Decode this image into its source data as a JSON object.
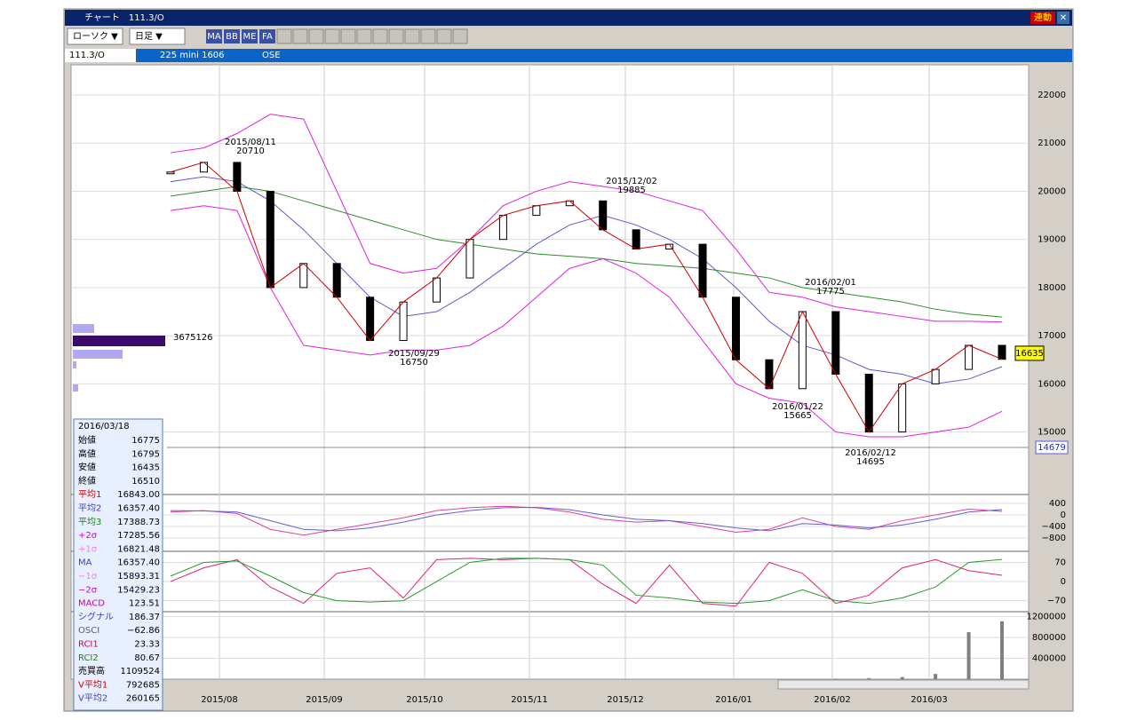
{
  "window": {
    "title": "チャート　111.3/O",
    "link_button": "連動"
  },
  "toolbar": {
    "chart_style": "ローソク ▼",
    "period": "日足 ▼",
    "icons": [
      "MA",
      "BB",
      "ME",
      "FA"
    ]
  },
  "infobar": {
    "symbol": "111.3/O",
    "name": "225 mini 1606",
    "market": "OSE"
  },
  "chart_data": {
    "type": "candlestick",
    "x_labels": [
      "2015/08",
      "2015/09",
      "2015/10",
      "2015/11",
      "2015/12",
      "2016/01",
      "2016/02",
      "2016/03"
    ],
    "series": [
      {
        "name": "終値",
        "color": "#000000",
        "values": [
          20400,
          20600,
          20000,
          18000,
          18500,
          17800,
          16900,
          17700,
          18200,
          19000,
          19500,
          19700,
          19800,
          19200,
          18800,
          18900,
          17800,
          16500,
          15900,
          17500,
          16200,
          15000,
          16000,
          16300,
          16800,
          16510
        ]
      },
      {
        "name": "平均2",
        "color": "#5a5ad0",
        "values": [
          20200,
          20300,
          20200,
          19800,
          19200,
          18500,
          17800,
          17400,
          17500,
          17900,
          18400,
          18900,
          19300,
          19500,
          19300,
          19000,
          18600,
          18000,
          17300,
          16800,
          16600,
          16300,
          16200,
          16000,
          16100,
          16357
        ]
      },
      {
        "name": "平均3",
        "color": "#2e8b2e",
        "values": [
          19900,
          20000,
          20100,
          20000,
          19800,
          19600,
          19400,
          19200,
          19000,
          18900,
          18800,
          18700,
          18650,
          18600,
          18500,
          18450,
          18400,
          18300,
          18200,
          18000,
          17900,
          17800,
          17700,
          17550,
          17450,
          17388
        ]
      },
      {
        "name": "+2σ",
        "color": "#e020e0",
        "values": [
          20800,
          20900,
          21200,
          21600,
          21500,
          20000,
          18500,
          18300,
          18400,
          19000,
          19700,
          20000,
          20200,
          20100,
          20000,
          19800,
          19600,
          18800,
          17900,
          17800,
          17600,
          17500,
          17400,
          17300,
          17300,
          17285
        ]
      },
      {
        "name": "-2σ",
        "color": "#e020e0",
        "values": [
          19600,
          19700,
          19600,
          18000,
          16800,
          16700,
          16600,
          16700,
          16700,
          16800,
          17200,
          17800,
          18400,
          18600,
          18300,
          17800,
          16900,
          16000,
          15700,
          15600,
          15000,
          14900,
          14900,
          15000,
          15100,
          15429
        ]
      }
    ],
    "ylim": [
      13720,
      22590
    ],
    "yticks": [
      15000,
      16000,
      17000,
      18000,
      19000,
      20000,
      21000,
      22000
    ],
    "annotations": [
      {
        "date": "2015/08/11",
        "value": 20710
      },
      {
        "date": "2015/09/29",
        "value": 16750
      },
      {
        "date": "2015/12/02",
        "value": 19885
      },
      {
        "date": "2016/01/22",
        "value": 15665
      },
      {
        "date": "2016/02/01",
        "value": 17775
      },
      {
        "date": "2016/02/12",
        "value": 14695
      }
    ],
    "last_price": 16635,
    "reference_price": 14679,
    "profile_label": "3675126",
    "macd": {
      "title": "MACD",
      "ylim": [
        -1230,
        615
      ],
      "yticks": [
        400,
        0,
        {
          "value": -400,
          "label": "−400"
        },
        {
          "value": -800,
          "label": "−800"
        }
      ],
      "series": [
        {
          "name": "MACD",
          "color": "#e040a0",
          "values": [
            100,
            150,
            50,
            -500,
            -700,
            -500,
            -300,
            -100,
            150,
            250,
            300,
            250,
            100,
            -150,
            -250,
            -200,
            -400,
            -600,
            -500,
            -100,
            -400,
            -500,
            -200,
            0,
            200,
            124
          ]
        },
        {
          "name": "シグナル",
          "color": "#6060d0",
          "values": [
            150,
            140,
            100,
            -200,
            -500,
            -550,
            -450,
            -250,
            0,
            150,
            250,
            260,
            180,
            0,
            -150,
            -200,
            -300,
            -450,
            -550,
            -300,
            -350,
            -450,
            -350,
            -150,
            100,
            186
          ]
        }
      ]
    },
    "rci": {
      "title": "RCI",
      "ylim": [
        -107,
        104
      ],
      "yticks": [
        70,
        0,
        {
          "value": -70,
          "label": "−70"
        }
      ],
      "series": [
        {
          "name": "RCI1",
          "color": "#e0207a",
          "values": [
            0,
            50,
            80,
            -20,
            -80,
            30,
            50,
            -60,
            80,
            85,
            80,
            85,
            80,
            -10,
            -80,
            60,
            -80,
            -90,
            70,
            30,
            -80,
            -50,
            50,
            80,
            40,
            23
          ]
        },
        {
          "name": "RCI2",
          "color": "#2a9a2a",
          "values": [
            20,
            70,
            75,
            20,
            -40,
            -70,
            -75,
            -70,
            0,
            70,
            85,
            85,
            80,
            60,
            -50,
            -60,
            -75,
            -80,
            -70,
            -30,
            -70,
            -80,
            -60,
            -20,
            70,
            81
          ]
        }
      ]
    },
    "volume": {
      "title": "売買高",
      "ylim": [
        0,
        1276000
      ],
      "yticks": [
        400000,
        800000,
        1200000
      ],
      "series": [
        {
          "name": "売買高",
          "color": "#808080",
          "values": [
            0,
            0,
            0,
            0,
            0,
            0,
            0,
            0,
            0,
            0,
            0,
            0,
            0,
            0,
            0,
            0,
            0,
            0,
            0,
            0,
            10000,
            20000,
            40000,
            100000,
            900000,
            1109524
          ]
        }
      ]
    }
  },
  "info_panel": {
    "date": "2016/03/18",
    "rows": [
      {
        "label": "始値",
        "value": "16775",
        "color": "#000000"
      },
      {
        "label": "高値",
        "value": "16795",
        "color": "#000000"
      },
      {
        "label": "安値",
        "value": "16435",
        "color": "#000000"
      },
      {
        "label": "終値",
        "value": "16510",
        "color": "#000000"
      },
      {
        "label": "平均1",
        "value": "16843.00",
        "color": "#d00000"
      },
      {
        "label": "平均2",
        "value": "16357.40",
        "color": "#4040c0"
      },
      {
        "label": "平均3",
        "value": "17388.73",
        "color": "#208020"
      },
      {
        "label": "+2σ",
        "value": "17285.56",
        "color": "#d000d0"
      },
      {
        "label": "+1σ",
        "value": "16821.48",
        "color": "#f080f0"
      },
      {
        "label": "MA",
        "value": "16357.40",
        "color": "#4040c0"
      },
      {
        "label": "−1σ",
        "value": "15893.31",
        "color": "#f080f0"
      },
      {
        "label": "−2σ",
        "value": "15429.23",
        "color": "#d000d0"
      },
      {
        "label": "MACD",
        "value": "123.51",
        "color": "#d000a0"
      },
      {
        "label": "シグナル",
        "value": "186.37",
        "color": "#4040c0"
      },
      {
        "label": "OSCI",
        "value": "−62.86",
        "color": "#606060"
      },
      {
        "label": "RCI1",
        "value": "23.33",
        "color": "#d00060"
      },
      {
        "label": "RCI2",
        "value": "80.67",
        "color": "#208020"
      },
      {
        "label": "売買高",
        "value": "1109524",
        "color": "#000000"
      },
      {
        "label": "V平均1",
        "value": "792685",
        "color": "#d00000"
      },
      {
        "label": "V平均2",
        "value": "260165",
        "color": "#4040c0"
      }
    ]
  }
}
